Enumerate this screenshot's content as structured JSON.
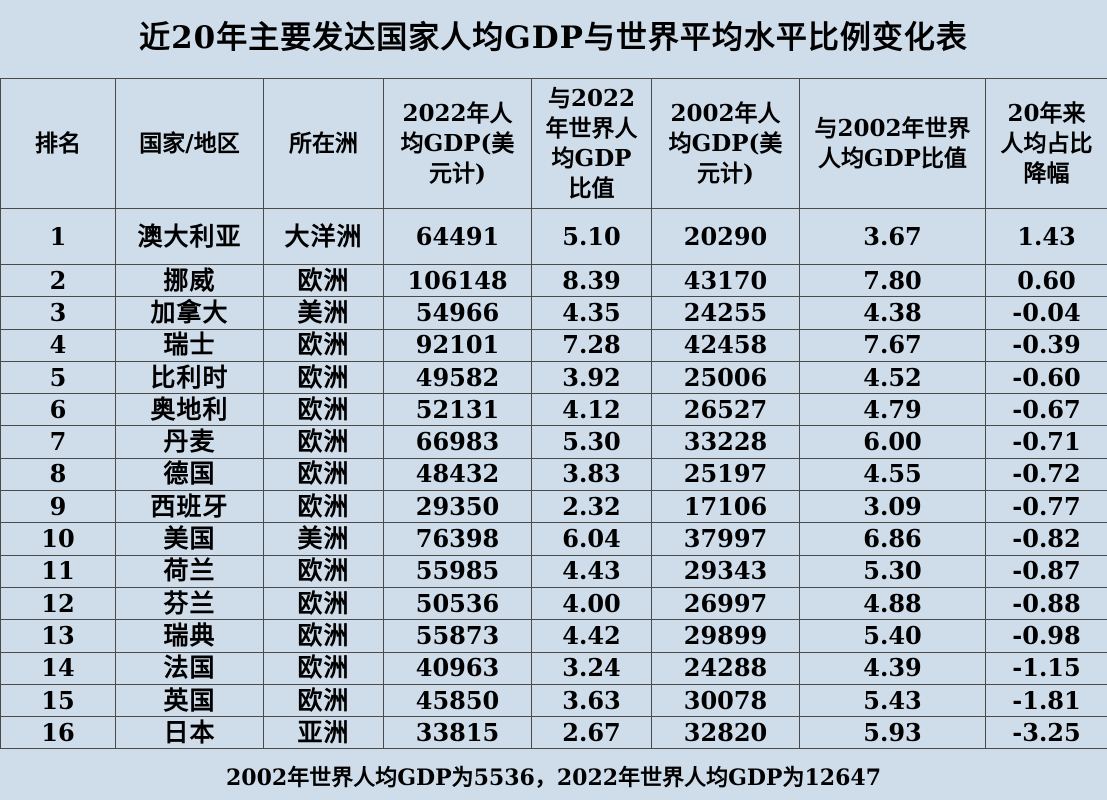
{
  "title": "近20年主要发达国家人均GDP与世界平均水平比例变化表",
  "headers": {
    "rank": "排名",
    "country": "国家/地区",
    "continent": "所在洲",
    "gdp2022": "2022年人均GDP(美元计)",
    "ratio2022": "与2022年世界人均GDP比值",
    "gdp2002": "2002年人均GDP(美元计)",
    "ratio2002": "与2002年世界人均GDP比值",
    "decline": "20年来人均占比降幅"
  },
  "rows": [
    {
      "rank": "1",
      "country": "澳大利亚",
      "continent": "大洋洲",
      "gdp2022": "64491",
      "ratio2022": "5.10",
      "gdp2002": "20290",
      "ratio2002": "3.67",
      "decline": "1.43"
    },
    {
      "rank": "2",
      "country": "挪威",
      "continent": "欧洲",
      "gdp2022": "106148",
      "ratio2022": "8.39",
      "gdp2002": "43170",
      "ratio2002": "7.80",
      "decline": "0.60"
    },
    {
      "rank": "3",
      "country": "加拿大",
      "continent": "美洲",
      "gdp2022": "54966",
      "ratio2022": "4.35",
      "gdp2002": "24255",
      "ratio2002": "4.38",
      "decline": "-0.04"
    },
    {
      "rank": "4",
      "country": "瑞士",
      "continent": "欧洲",
      "gdp2022": "92101",
      "ratio2022": "7.28",
      "gdp2002": "42458",
      "ratio2002": "7.67",
      "decline": "-0.39"
    },
    {
      "rank": "5",
      "country": "比利时",
      "continent": "欧洲",
      "gdp2022": "49582",
      "ratio2022": "3.92",
      "gdp2002": "25006",
      "ratio2002": "4.52",
      "decline": "-0.60"
    },
    {
      "rank": "6",
      "country": "奥地利",
      "continent": "欧洲",
      "gdp2022": "52131",
      "ratio2022": "4.12",
      "gdp2002": "26527",
      "ratio2002": "4.79",
      "decline": "-0.67"
    },
    {
      "rank": "7",
      "country": "丹麦",
      "continent": "欧洲",
      "gdp2022": "66983",
      "ratio2022": "5.30",
      "gdp2002": "33228",
      "ratio2002": "6.00",
      "decline": "-0.71"
    },
    {
      "rank": "8",
      "country": "德国",
      "continent": "欧洲",
      "gdp2022": "48432",
      "ratio2022": "3.83",
      "gdp2002": "25197",
      "ratio2002": "4.55",
      "decline": "-0.72"
    },
    {
      "rank": "9",
      "country": "西班牙",
      "continent": "欧洲",
      "gdp2022": "29350",
      "ratio2022": "2.32",
      "gdp2002": "17106",
      "ratio2002": "3.09",
      "decline": "-0.77"
    },
    {
      "rank": "10",
      "country": "美国",
      "continent": "美洲",
      "gdp2022": "76398",
      "ratio2022": "6.04",
      "gdp2002": "37997",
      "ratio2002": "6.86",
      "decline": "-0.82"
    },
    {
      "rank": "11",
      "country": "荷兰",
      "continent": "欧洲",
      "gdp2022": "55985",
      "ratio2022": "4.43",
      "gdp2002": "29343",
      "ratio2002": "5.30",
      "decline": "-0.87"
    },
    {
      "rank": "12",
      "country": "芬兰",
      "continent": "欧洲",
      "gdp2022": "50536",
      "ratio2022": "4.00",
      "gdp2002": "26997",
      "ratio2002": "4.88",
      "decline": "-0.88"
    },
    {
      "rank": "13",
      "country": "瑞典",
      "continent": "欧洲",
      "gdp2022": "55873",
      "ratio2022": "4.42",
      "gdp2002": "29899",
      "ratio2002": "5.40",
      "decline": "-0.98"
    },
    {
      "rank": "14",
      "country": "法国",
      "continent": "欧洲",
      "gdp2022": "40963",
      "ratio2022": "3.24",
      "gdp2002": "24288",
      "ratio2002": "4.39",
      "decline": "-1.15"
    },
    {
      "rank": "15",
      "country": "英国",
      "continent": "欧洲",
      "gdp2022": "45850",
      "ratio2022": "3.63",
      "gdp2002": "30078",
      "ratio2002": "5.43",
      "decline": "-1.81"
    },
    {
      "rank": "16",
      "country": "日本",
      "continent": "亚洲",
      "gdp2022": "33815",
      "ratio2022": "2.67",
      "gdp2002": "32820",
      "ratio2002": "5.93",
      "decline": "-3.25"
    }
  ],
  "footer": "2002年世界人均GDP为5536，2022年世界人均GDP为12647",
  "colors": {
    "background": "#cfdcea",
    "grid": "#4a4a4a",
    "text": "#000000"
  }
}
